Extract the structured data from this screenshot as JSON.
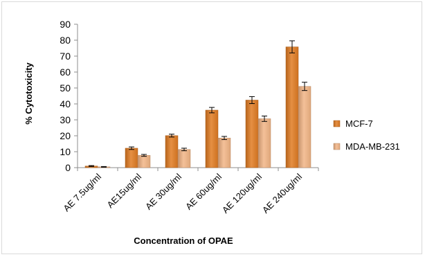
{
  "chart_data": {
    "type": "bar",
    "title": "",
    "xlabel": "Concentration of OPAE",
    "ylabel": "% Cytotoxicity",
    "ylim": [
      0,
      90
    ],
    "ytick_step": 10,
    "grid": false,
    "legend_position": "right",
    "categories": [
      "AE 7.5ug/ml",
      "AE15ug/ml",
      "AE 30ug/ml",
      "AE 60ug/ml",
      "AE 120ug/ml",
      "AE 240ug/ml"
    ],
    "series": [
      {
        "name": "MCF-7",
        "color": "#e07b22",
        "values": [
          1.0,
          12.2,
          20.1,
          36.1,
          42.4,
          75.8
        ],
        "errors": [
          0.3,
          0.8,
          0.9,
          1.7,
          2.2,
          3.8
        ]
      },
      {
        "name": "MDA-MB-231",
        "color": "#f2b586",
        "values": [
          0.5,
          7.7,
          11.4,
          18.6,
          30.7,
          51.0
        ],
        "errors": [
          0.2,
          0.6,
          0.8,
          1.0,
          1.7,
          2.6
        ]
      }
    ]
  }
}
